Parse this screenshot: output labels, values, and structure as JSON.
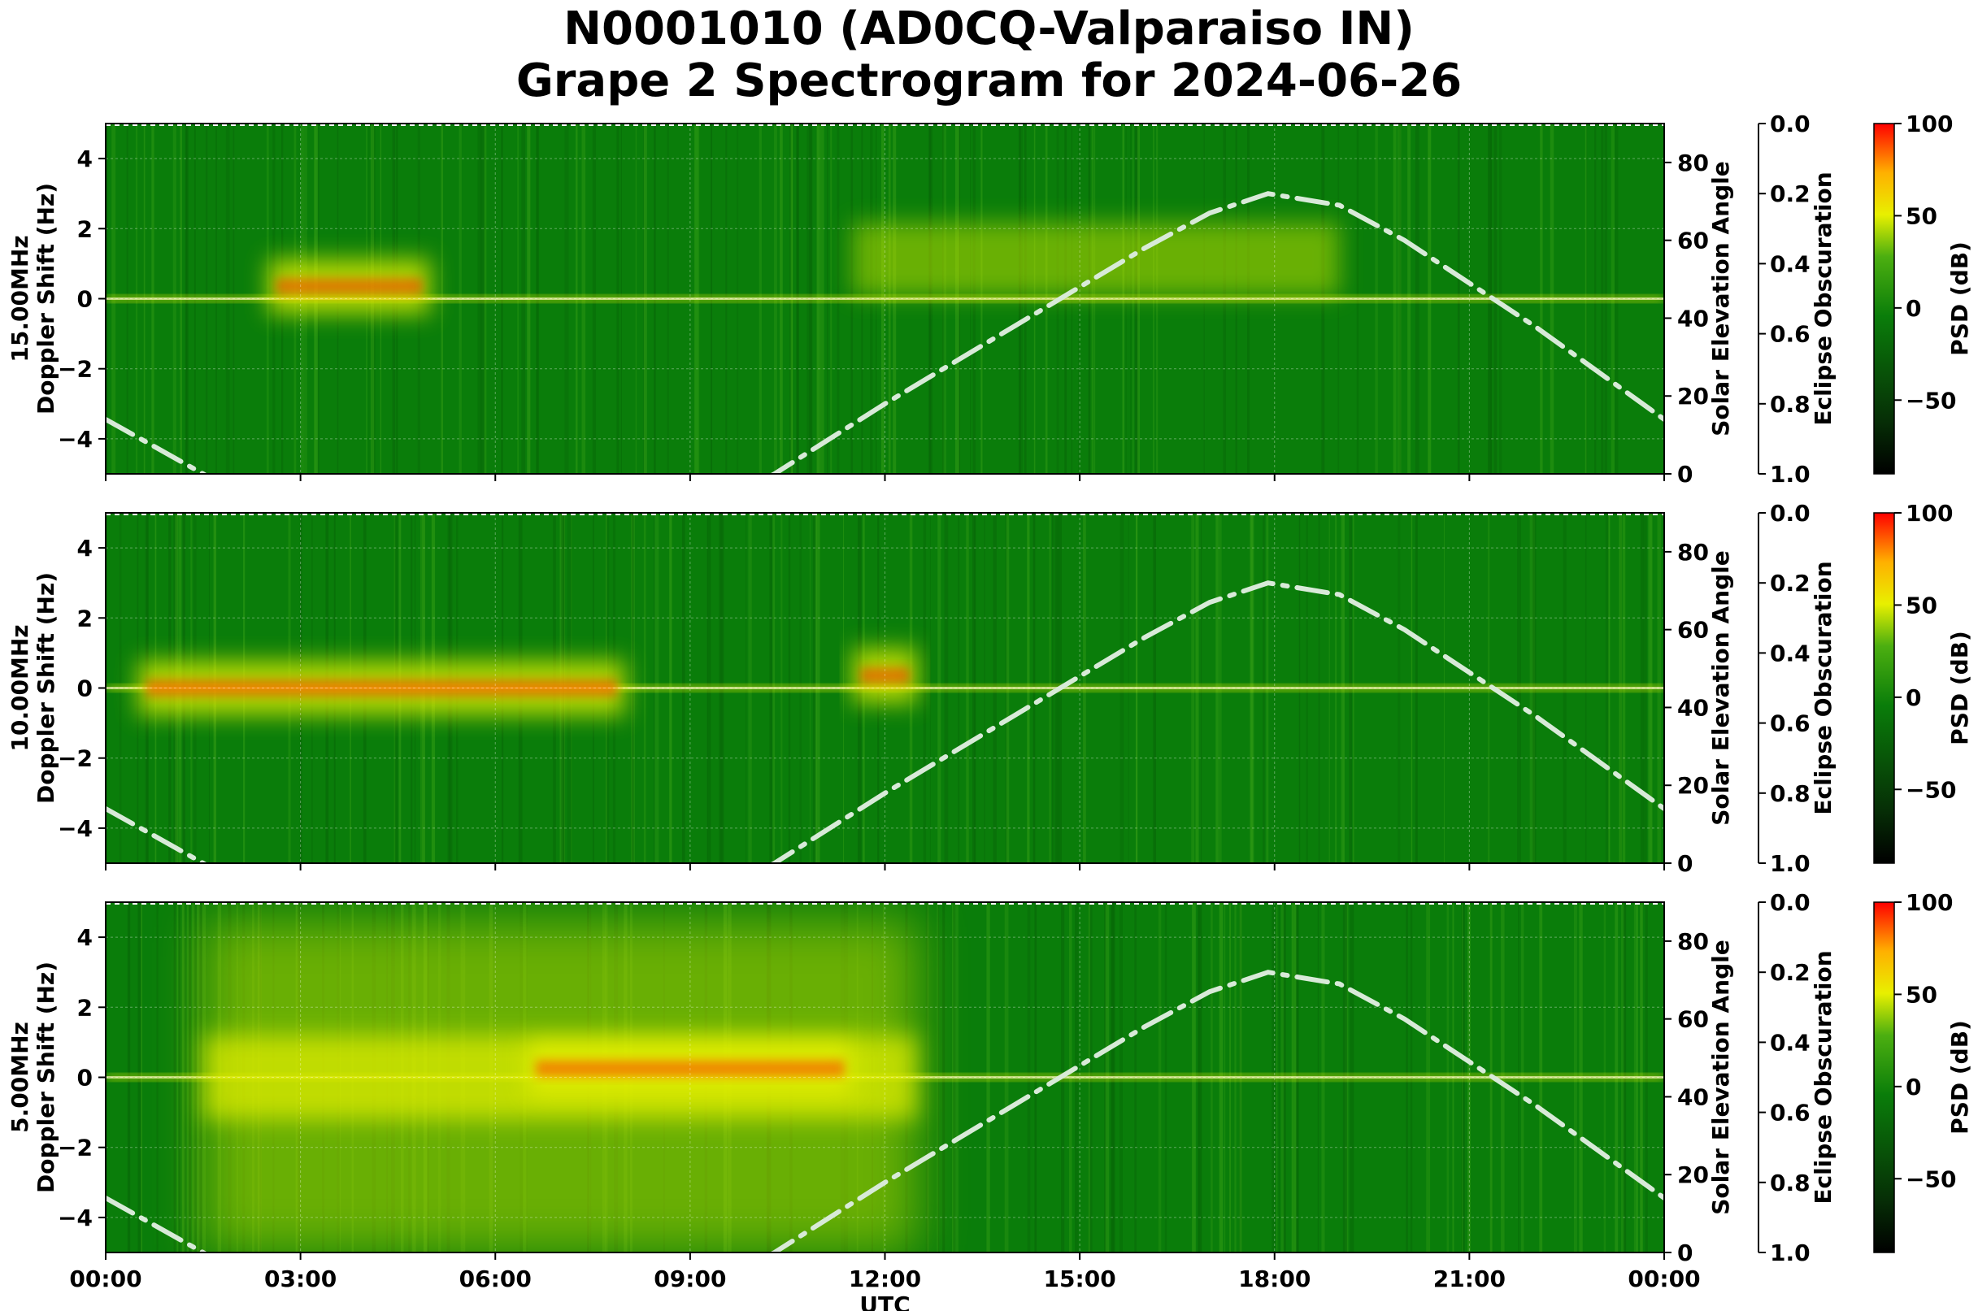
{
  "title_line1": "N0001010 (AD0CQ-Valparaiso IN)",
  "title_line2": "Grape 2 Spectrogram for 2024-06-26",
  "colors": {
    "background_green": "#0a7d0a",
    "signal_yellow": "#e6f000",
    "signal_red": "#ff3a00",
    "solar_curve": "#d8ead8"
  },
  "chart_data": [
    {
      "type": "heatmap",
      "panel": "15.00MHz",
      "ylabel": "15.00MHz\nDoppler Shift (Hz)",
      "ylim": [
        -5,
        5
      ],
      "yticks": [
        -4,
        -2,
        0,
        2,
        4
      ],
      "xlim": [
        0,
        24
      ],
      "secondary_ylabel": "Solar Elevation Angle",
      "secondary_ylim": [
        0,
        90
      ],
      "secondary_yticks": [
        0,
        20,
        40,
        60,
        80
      ],
      "eclipse_label": "Eclipse Obscuration",
      "eclipse_ticks": [
        "0.0",
        "0.2",
        "0.4",
        "0.6",
        "0.8",
        "1.0"
      ],
      "colorbar_label": "PSD (dB)",
      "colorbar_ticks": [
        "100",
        "50",
        "0",
        "−50"
      ],
      "colorbar_range": [
        -90,
        100
      ],
      "solar_elevation": {
        "x": [
          0,
          1.5,
          3,
          6,
          8,
          10.3,
          12,
          14,
          15,
          16,
          17,
          17.9,
          19,
          20,
          21,
          22,
          23,
          24
        ],
        "y": [
          14,
          0,
          -15,
          -28,
          -20,
          0,
          18,
          38,
          48,
          58,
          67,
          72,
          69,
          60,
          49,
          38,
          26,
          14
        ]
      },
      "features": [
        {
          "x": [
            0,
            24
          ],
          "doppler": [
            0,
            0
          ],
          "level": "carrier"
        },
        {
          "x": [
            2.5,
            5
          ],
          "doppler": [
            0.4,
            0.3
          ],
          "level": "high"
        },
        {
          "x": [
            11.5,
            19
          ],
          "doppler": [
            1,
            1.5
          ],
          "level": "medium"
        }
      ]
    },
    {
      "type": "heatmap",
      "panel": "10.00MHz",
      "ylabel": "10.00MHz\nDoppler Shift (Hz)",
      "ylim": [
        -5,
        5
      ],
      "yticks": [
        -4,
        -2,
        0,
        2,
        4
      ],
      "xlim": [
        0,
        24
      ],
      "secondary_ylabel": "Solar Elevation Angle",
      "secondary_ylim": [
        0,
        90
      ],
      "secondary_yticks": [
        0,
        20,
        40,
        60,
        80
      ],
      "eclipse_label": "Eclipse Obscuration",
      "eclipse_ticks": [
        "0.0",
        "0.2",
        "0.4",
        "0.6",
        "0.8",
        "1.0"
      ],
      "colorbar_label": "PSD (dB)",
      "colorbar_ticks": [
        "100",
        "50",
        "0",
        "−50"
      ],
      "colorbar_range": [
        -90,
        100
      ],
      "solar_elevation": {
        "x": [
          0,
          1.5,
          3,
          6,
          8,
          10.3,
          12,
          14,
          15,
          16,
          17,
          17.9,
          19,
          20,
          21,
          22,
          23,
          24
        ],
        "y": [
          14,
          0,
          -15,
          -28,
          -20,
          0,
          18,
          38,
          48,
          58,
          67,
          72,
          69,
          60,
          49,
          38,
          26,
          14
        ]
      },
      "features": [
        {
          "x": [
            0,
            24
          ],
          "doppler": [
            0,
            0
          ],
          "level": "carrier"
        },
        {
          "x": [
            0.5,
            8
          ],
          "doppler": [
            0,
            0
          ],
          "level": "high"
        },
        {
          "x": [
            11.5,
            12.5
          ],
          "doppler": [
            0.5,
            0.2
          ],
          "level": "high"
        }
      ]
    },
    {
      "type": "heatmap",
      "panel": "5.00MHz",
      "ylabel": "5.00MHz\nDoppler Shift (Hz)",
      "ylim": [
        -5,
        5
      ],
      "yticks": [
        -4,
        -2,
        0,
        2,
        4
      ],
      "xlim": [
        0,
        24
      ],
      "xticks": [
        "00:00",
        "03:00",
        "06:00",
        "09:00",
        "12:00",
        "15:00",
        "18:00",
        "21:00",
        "00:00"
      ],
      "xlabel": "UTC",
      "secondary_ylabel": "Solar Elevation Angle",
      "secondary_ylim": [
        0,
        90
      ],
      "secondary_yticks": [
        0,
        20,
        40,
        60,
        80
      ],
      "eclipse_label": "Eclipse Obscuration",
      "eclipse_ticks": [
        "0.0",
        "0.2",
        "0.4",
        "0.6",
        "0.8",
        "1.0"
      ],
      "colorbar_label": "PSD (dB)",
      "colorbar_ticks": [
        "100",
        "50",
        "0",
        "−50"
      ],
      "colorbar_range": [
        -90,
        100
      ],
      "solar_elevation": {
        "x": [
          0,
          1.5,
          3,
          6,
          8,
          10.3,
          12,
          14,
          15,
          16,
          17,
          17.9,
          19,
          20,
          21,
          22,
          23,
          24
        ],
        "y": [
          14,
          0,
          -15,
          -28,
          -20,
          0,
          18,
          38,
          48,
          58,
          67,
          72,
          69,
          60,
          49,
          38,
          26,
          14
        ]
      },
      "features": [
        {
          "x": [
            0,
            24
          ],
          "doppler": [
            0,
            0
          ],
          "level": "carrier"
        },
        {
          "x": [
            1.5,
            12.5
          ],
          "doppler": [
            0,
            0
          ],
          "level": "broad"
        },
        {
          "x": [
            6.5,
            11.5
          ],
          "doppler": [
            0,
            0.5
          ],
          "level": "high"
        }
      ]
    }
  ]
}
